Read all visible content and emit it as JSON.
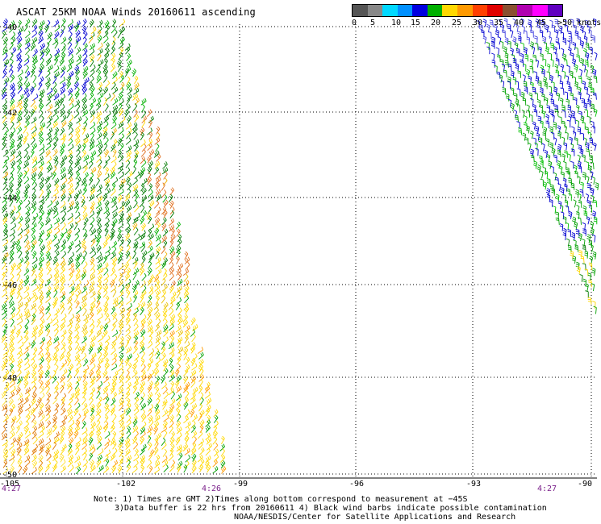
{
  "title": "ASCAT 25KM NOAA Winds 20160611 ascending",
  "legend": {
    "colors": [
      "#555555",
      "#888888",
      "#00d8ff",
      "#0090ff",
      "#0000e0",
      "#00b000",
      "#ffd800",
      "#ff9a00",
      "#ff4000",
      "#e00000",
      "#8a5030",
      "#b000b0",
      "#ff00ff",
      "#6000c0"
    ],
    "labels": [
      "0",
      "5",
      "10",
      "15",
      "20",
      "25",
      "30",
      "35",
      "40",
      "45",
      ">50 knots"
    ],
    "label_x": [
      0,
      23,
      49,
      73,
      98,
      124,
      150,
      176,
      201,
      229,
      255
    ]
  },
  "axes": {
    "lon_ticks": [
      "-105",
      "-102",
      "-99",
      "-96",
      "-93",
      "-90"
    ],
    "lat_ticks": [
      "-40",
      "-42",
      "-44",
      "-46",
      "-48",
      "-50"
    ]
  },
  "time_labels": [
    "4:27",
    "4:26",
    "4:27"
  ],
  "notes": {
    "line1": "Note: 1) Times are GMT 2)Times along bottom correspond to measurement at −45S",
    "line2": "3)Data buffer is 22 hrs from 20160611 4) Black wind barbs indicate possible contamination",
    "line3": "NOAA/NESDIS/Center for Satellite Applications and Research"
  }
}
